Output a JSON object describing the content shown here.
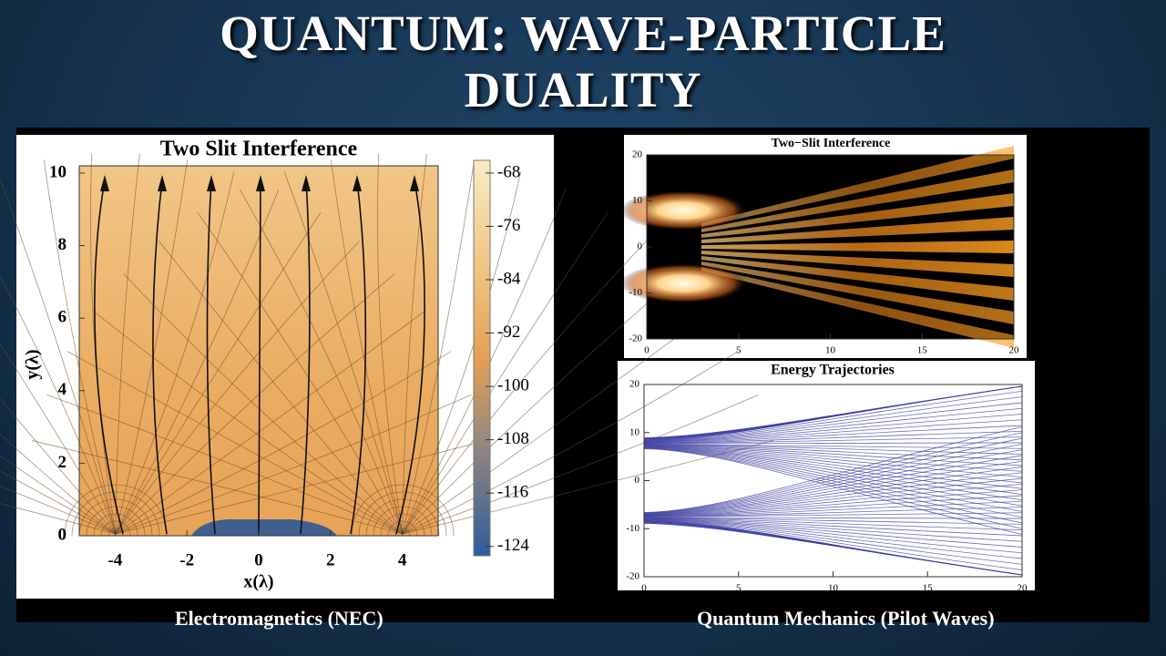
{
  "slide": {
    "title": "QUANTUM: WAVE-PARTICLE DUALITY",
    "captions": [
      "Electromagnetics (NEC)",
      "Quantum Mechanics (Pilot Waves)"
    ]
  },
  "panels": [
    {
      "title": "Two Slit Interference",
      "xlabel": "x(λ)",
      "ylabel": "y(λ)",
      "xlim": [
        -5,
        5
      ],
      "ylim": [
        0,
        10.2
      ],
      "xticks": [
        -4,
        -2,
        0,
        2,
        4
      ],
      "yticks": [
        0,
        2,
        4,
        6,
        8,
        10
      ],
      "colorbar": {
        "lim": [
          -125.4,
          -66.1
        ],
        "ticks": [
          -68,
          -76,
          -84,
          -92,
          -100,
          -108,
          -116,
          -124
        ]
      }
    },
    {
      "title": "Two−Slit Interference",
      "xlim": [
        0,
        20
      ],
      "ylim": [
        -20,
        20
      ],
      "xticks": [
        0,
        5,
        10,
        15,
        20
      ],
      "yticks": [
        -20,
        -10,
        0,
        10,
        20
      ]
    },
    {
      "title": "Energy Trajectories",
      "xlim": [
        0,
        20
      ],
      "ylim": [
        -20,
        20
      ],
      "xticks": [
        0,
        5,
        10,
        15,
        20
      ],
      "yticks": [
        -20,
        -10,
        0,
        10,
        20
      ]
    }
  ]
}
